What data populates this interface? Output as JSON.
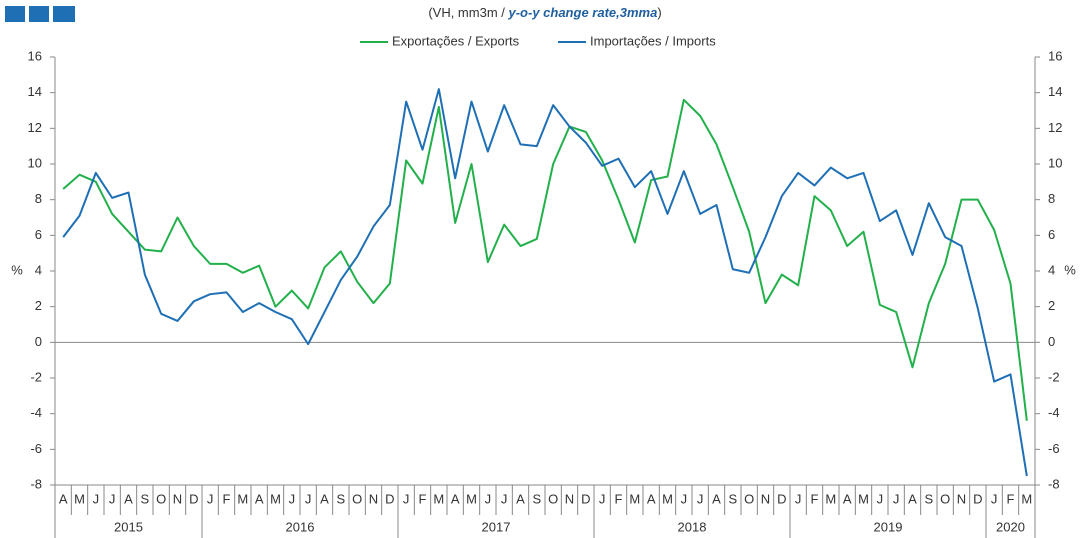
{
  "chart_data": {
    "type": "line",
    "subtitle": {
      "pre": "(VH, mm3m / ",
      "emph": "y-o-y change rate,3mma",
      "post": ")"
    },
    "ylabel": "%",
    "y2label": "%",
    "categories": [
      "A",
      "M",
      "J",
      "J",
      "A",
      "S",
      "O",
      "N",
      "D",
      "J",
      "F",
      "M",
      "A",
      "M",
      "J",
      "J",
      "A",
      "S",
      "O",
      "N",
      "D",
      "J",
      "F",
      "M",
      "A",
      "M",
      "J",
      "J",
      "A",
      "S",
      "O",
      "N",
      "D",
      "J",
      "F",
      "M",
      "A",
      "M",
      "J",
      "J",
      "A",
      "S",
      "O",
      "N",
      "D",
      "J",
      "F",
      "M",
      "A",
      "M",
      "J",
      "J",
      "A",
      "S",
      "O",
      "N",
      "D",
      "J",
      "F",
      "M"
    ],
    "years": [
      "2015",
      "2016",
      "2017",
      "2018",
      "2019",
      "2020"
    ],
    "series": [
      {
        "name": "Exportações / Exports",
        "color": "#22b04b",
        "values": [
          8.6,
          9.4,
          9.0,
          7.2,
          6.2,
          5.2,
          5.1,
          7.0,
          5.4,
          4.4,
          4.4,
          3.9,
          4.3,
          2.0,
          2.9,
          1.9,
          4.2,
          5.1,
          3.4,
          2.2,
          3.3,
          10.2,
          8.9,
          13.2,
          6.7,
          10.0,
          4.5,
          6.6,
          5.4,
          5.8,
          10.0,
          12.1,
          11.8,
          10.2,
          8.0,
          5.6,
          9.1,
          9.3,
          13.6,
          12.7,
          11.1,
          8.7,
          6.2,
          2.2,
          3.8,
          3.2,
          8.2,
          7.4,
          5.4,
          6.2,
          2.1,
          1.7,
          -1.4,
          2.2,
          4.4,
          8.0,
          8.0,
          6.3,
          3.3,
          -4.4
        ]
      },
      {
        "name": "Importações / Imports",
        "color": "#1f6fb5",
        "values": [
          5.9,
          7.1,
          9.5,
          8.1,
          8.4,
          3.8,
          1.6,
          1.2,
          2.3,
          2.7,
          2.8,
          1.7,
          2.2,
          1.7,
          1.3,
          -0.1,
          1.7,
          3.5,
          4.8,
          6.5,
          7.7,
          13.5,
          10.8,
          14.2,
          9.2,
          13.5,
          10.7,
          13.3,
          11.1,
          11.0,
          13.3,
          12.1,
          11.2,
          9.9,
          10.3,
          8.7,
          9.6,
          7.2,
          9.6,
          7.2,
          7.7,
          4.1,
          3.9,
          5.9,
          8.2,
          9.5,
          8.8,
          9.8,
          9.2,
          9.5,
          6.8,
          7.4,
          4.9,
          7.8,
          5.9,
          5.4,
          1.9,
          -2.2,
          -1.8,
          -7.5
        ]
      }
    ],
    "ylim": [
      -8,
      16
    ],
    "yticks": [
      -8,
      -6,
      -4,
      -2,
      0,
      2,
      4,
      6,
      8,
      10,
      12,
      14,
      16
    ],
    "y2lim": [
      -8,
      16
    ],
    "y2ticks": [
      -8,
      -6,
      -4,
      -2,
      0,
      2,
      4,
      6,
      8,
      10,
      12,
      14,
      16
    ],
    "legend": "top"
  }
}
